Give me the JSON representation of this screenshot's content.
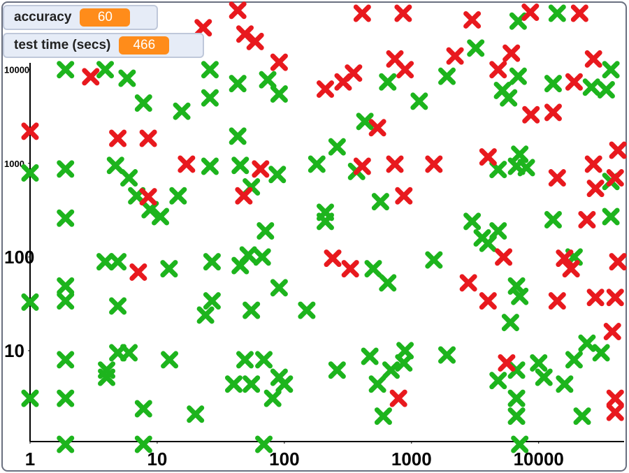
{
  "monitors": [
    {
      "label": "accuracy",
      "value": 60
    },
    {
      "label": "test time (secs)",
      "value": 466
    }
  ],
  "chart_data": {
    "type": "scatter",
    "xscale": "log",
    "yscale": "log",
    "xlim": [
      1,
      47000
    ],
    "ylim": [
      1,
      50000
    ],
    "xticks": [
      1,
      10,
      100,
      1000,
      10000
    ],
    "yticks": [
      10,
      100,
      1000,
      10000
    ],
    "series": [
      {
        "color": "#1db41d",
        "x": [
          1,
          1,
          1,
          1.9,
          1.9,
          1.9,
          1.9,
          1.9,
          1.9,
          1.9,
          1.9,
          3.9,
          5.8,
          7.8,
          7.8,
          7.8,
          4.7,
          6,
          6.9,
          8.8,
          10.6,
          14.6,
          3.9,
          4.9,
          4.9,
          12.4,
          4,
          4,
          4.9,
          6,
          12.5,
          15.6,
          20,
          26,
          26,
          26,
          27,
          27,
          24,
          43,
          43,
          45,
          55,
          71,
          52,
          67,
          45,
          55,
          49,
          69,
          40,
          55,
          81,
          91,
          100,
          69,
          91,
          88,
          91,
          74,
          150,
          180,
          210,
          210,
          260,
          260,
          430,
          370,
          570,
          470,
          500,
          650,
          540,
          600,
          650,
          690,
          890,
          870,
          1150,
          1500,
          1900,
          1900,
          3200,
          3000,
          3600,
          4000,
          4800,
          5200,
          5800,
          6900,
          6700,
          7100,
          8000,
          4800,
          6900,
          6700,
          7100,
          6000,
          6700,
          6700,
          7100,
          4800,
          6700,
          10000,
          11000,
          13000,
          13000,
          14000,
          19000,
          16000,
          19000,
          22000,
          24000,
          26000,
          31000,
          37000,
          37000,
          37000,
          34000
        ],
        "values": [
          790,
          33,
          3.1,
          10000,
          870,
          260,
          49,
          34,
          8,
          3.1,
          1,
          10000,
          8100,
          4400,
          2.4,
          1,
          950,
          700,
          450,
          320,
          270,
          450,
          89,
          89,
          30,
          75,
          6.2,
          5.2,
          9.5,
          9.5,
          8,
          3600,
          2.1,
          10000,
          5000,
          930,
          89,
          34,
          24,
          1950,
          7100,
          950,
          560,
          190,
          105,
          100,
          81,
          27,
          8,
          8,
          4.4,
          4.4,
          3.1,
          5.2,
          4.4,
          1,
          47,
          760,
          5500,
          7800,
          27,
          980,
          300,
          240,
          1500,
          6.2,
          2800,
          820,
          390,
          8.7,
          75,
          53,
          4.4,
          2,
          7400,
          6.2,
          10,
          7.4,
          4600,
          93,
          9,
          8500,
          17000,
          240,
          160,
          140,
          190,
          6000,
          5000,
          8500,
          930,
          1250,
          900,
          860,
          33000,
          49,
          38,
          20,
          3.1,
          2,
          1,
          4.8,
          6.2,
          7.4,
          5.2,
          7100,
          250,
          40000,
          100,
          4.4,
          8,
          2,
          12,
          6500,
          9.5,
          640,
          270,
          10000,
          6100
        ]
      },
      {
        "color": "#e8191e",
        "x": [
          1,
          3,
          4.9,
          8.5,
          8.5,
          7.1,
          17,
          23,
          43,
          49,
          59,
          91,
          48,
          65,
          210,
          290,
          350,
          240,
          330,
          410,
          540,
          410,
          740,
          890,
          740,
          870,
          790,
          1500,
          2200,
          3000,
          6100,
          4800,
          4000,
          5300,
          2800,
          4000,
          5600,
          8700,
          13000,
          14000,
          19000,
          16000,
          18000,
          14000,
          21000,
          27000,
          27000,
          28000,
          24000,
          28000,
          40000,
          42000,
          38000,
          40000,
          40000,
          42000,
          40000,
          8600,
          860
        ],
        "values": [
          2200,
          8400,
          1850,
          1850,
          440,
          69,
          980,
          28000,
          43000,
          24000,
          20000,
          12000,
          450,
          870,
          6200,
          7400,
          9200,
          97,
          75,
          40000,
          2400,
          930,
          13000,
          10000,
          980,
          450,
          3.1,
          980,
          14000,
          34000,
          15000,
          10000,
          1170,
          100,
          53,
          34,
          7.4,
          3300,
          3500,
          700,
          7400,
          97,
          75,
          34,
          40000,
          13000,
          980,
          540,
          250,
          37,
          37,
          89,
          16,
          2.2,
          3.1,
          1380,
          700,
          41000,
          40000
        ]
      }
    ]
  }
}
